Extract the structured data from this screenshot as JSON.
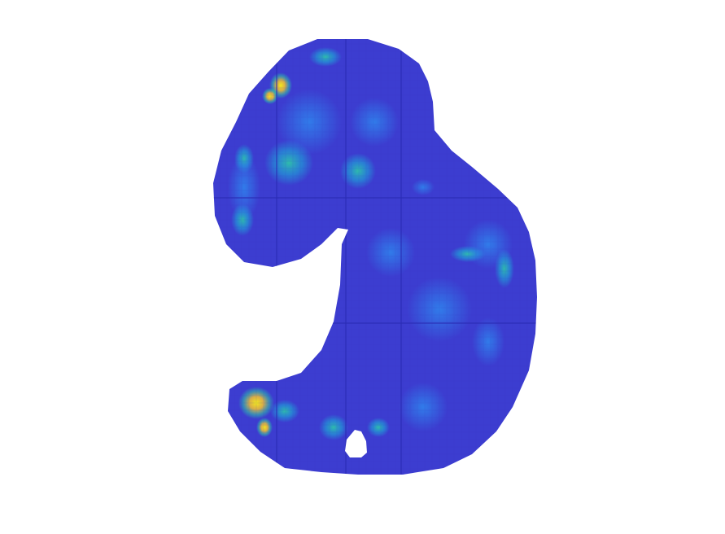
{
  "figure": {
    "background": "#ffffff",
    "colormap": {
      "name": "parula",
      "stops": [
        "#3537c6",
        "#3c5ef0",
        "#2f86ee",
        "#1ea7d8",
        "#2fc1a9",
        "#8bc95f",
        "#e9b93a",
        "#f3e91c"
      ]
    },
    "shape_fill": "#3c3dd0",
    "grid_line_color": "#2a2bb5"
  }
}
